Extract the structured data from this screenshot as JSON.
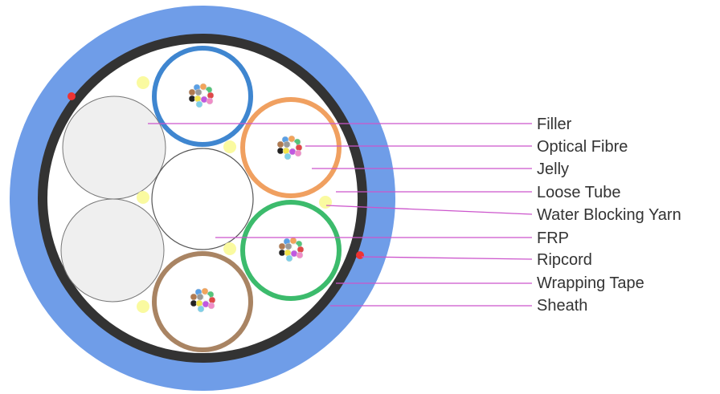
{
  "colors": {
    "sheath": "#6f9de8",
    "wrapping_tape": "#333333",
    "core_fill": "#ffffff",
    "filler": "#efefef",
    "water_blocking_yarn": "#fafaa0",
    "ripcord": "#ee3333",
    "leader_line": "#cc55cc",
    "tube_blue": "#3f86d0",
    "tube_orange": "#f0a060",
    "tube_green": "#3cbb6c",
    "tube_brown": "#a98463"
  },
  "fibre_colors": [
    "#5aa0e6",
    "#f2a35a",
    "#55c47a",
    "#b07a50",
    "#999999",
    "#ffffff",
    "#e04848",
    "#222222",
    "#f2e44a",
    "#c058e0",
    "#f08cc8",
    "#7ed0e8"
  ],
  "labels": {
    "filler": "Filler",
    "optical_fibre": "Optical Fibre",
    "jelly": "Jelly",
    "loose_tube": "Loose Tube",
    "water_blocking_yarn": "Water Blocking Yarn",
    "frp": "FRP",
    "ripcord": "Ripcord",
    "wrapping_tape": "Wrapping Tape",
    "sheath": "Sheath"
  }
}
